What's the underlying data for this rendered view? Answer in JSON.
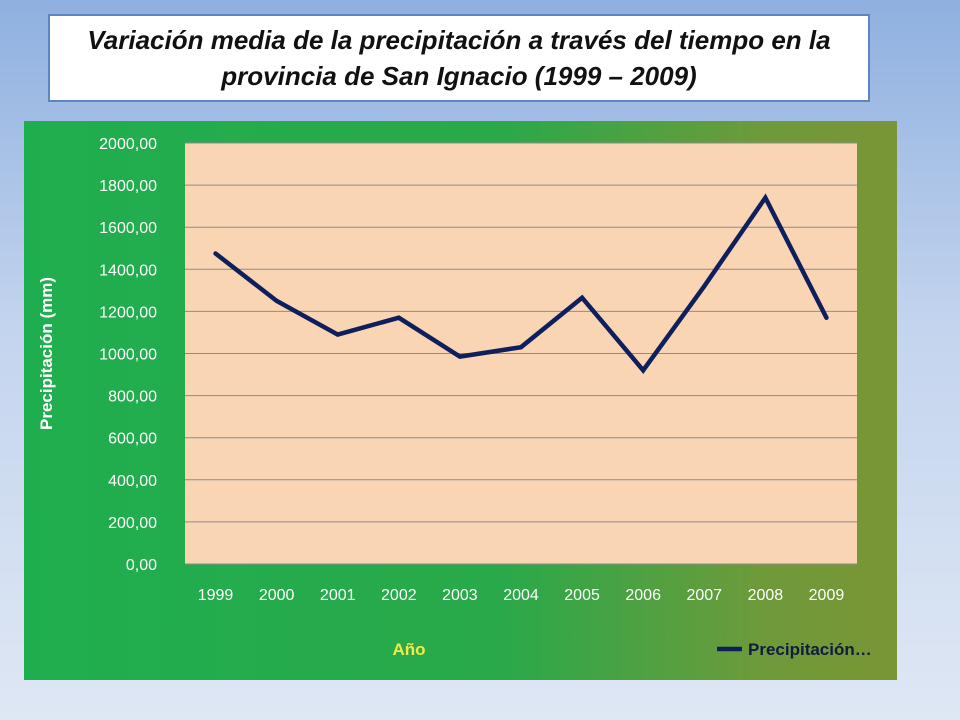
{
  "slide": {
    "title": "Variación media de la precipitación a través del tiempo en la provincia de San Ignacio (1999 – 2009)"
  },
  "colors": {
    "plot_background": "#f9d5b4",
    "line": "#0f1f5c",
    "gridline": "#8c8c8c",
    "xlabel": "#f5e84a",
    "ylabel": "#ffffff"
  },
  "chart_data": {
    "type": "line",
    "x": [
      "1999",
      "2000",
      "2001",
      "2002",
      "2003",
      "2004",
      "2005",
      "2006",
      "2007",
      "2008",
      "2009"
    ],
    "series": [
      {
        "name": "Precipitación…",
        "values": [
          1475,
          1250,
          1090,
          1170,
          985,
          1030,
          1265,
          920,
          1320,
          1740,
          1170
        ]
      }
    ],
    "xlabel": "Año",
    "ylabel": "Precipitación (mm)",
    "ylim": [
      0,
      2000
    ],
    "yticks": [
      "0,00",
      "200,00",
      "400,00",
      "600,00",
      "800,00",
      "1000,00",
      "1200,00",
      "1400,00",
      "1600,00",
      "1800,00",
      "2000,00"
    ],
    "grid": true,
    "legend": "bottom-right"
  }
}
